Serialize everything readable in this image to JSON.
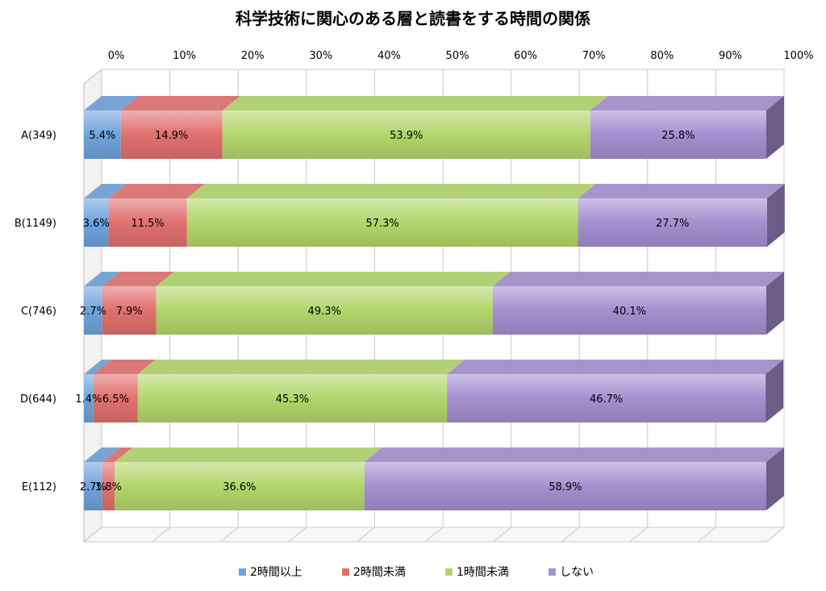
{
  "chart_data": {
    "type": "bar",
    "orientation": "horizontal",
    "stacked": "percent",
    "three_d": true,
    "title": "科学技術に関心のある層と読書をする時間の関係",
    "x_ticks": [
      "0%",
      "10%",
      "20%",
      "30%",
      "40%",
      "50%",
      "60%",
      "70%",
      "80%",
      "90%",
      "100%"
    ],
    "xlim": [
      0,
      100
    ],
    "grid": true,
    "legend_position": "bottom",
    "categories": [
      "A(349)",
      "B(1149)",
      "C(746)",
      "D(644)",
      "E(112)"
    ],
    "series": [
      {
        "name": "2時間以上",
        "color": "#6fa3dd",
        "values": [
          5.4,
          3.6,
          2.7,
          1.4,
          2.7
        ],
        "labels": [
          "5.4%",
          "3.6%",
          "2.7%",
          "1.4%",
          "2.7%"
        ]
      },
      {
        "name": "2時間未満",
        "color": "#e0706e",
        "values": [
          14.9,
          11.5,
          7.9,
          6.5,
          1.8
        ],
        "labels": [
          "14.9%",
          "11.5%",
          "7.9%",
          "6.5%",
          "1.8%"
        ]
      },
      {
        "name": "1時間未満",
        "color": "#b3d66b",
        "values": [
          53.9,
          57.3,
          49.3,
          45.3,
          36.6
        ],
        "labels": [
          "53.9%",
          "57.3%",
          "49.3%",
          "45.3%",
          "36.6%"
        ]
      },
      {
        "name": "しない",
        "color": "#a58fd0",
        "values": [
          25.8,
          27.7,
          40.1,
          46.7,
          58.9
        ],
        "labels": [
          "25.8%",
          "27.7%",
          "40.1%",
          "46.7%",
          "58.9%"
        ]
      }
    ]
  }
}
